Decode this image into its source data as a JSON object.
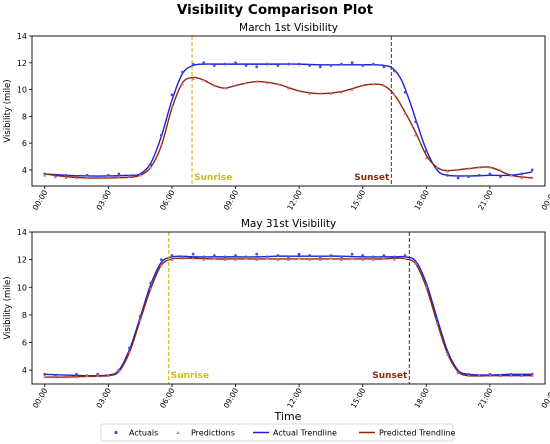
{
  "figure": {
    "title": "Visibility Comparison Plot",
    "xlabel": "Time"
  },
  "legend": {
    "placement": "bottom-center",
    "entries": [
      {
        "label": "Actuals",
        "kind": "points",
        "color": "#3b55d9"
      },
      {
        "label": "Predictions",
        "kind": "points",
        "color": "#e46a8c"
      },
      {
        "label": "Actual Trendline",
        "kind": "line",
        "color": "#1f1fd6"
      },
      {
        "label": "Predicted Trendline",
        "kind": "line",
        "color": "#8b2a0a"
      }
    ]
  },
  "colors": {
    "actual": "#1f1fd6",
    "predicted": "#8b2a0a",
    "actual_points": "#3b55d9",
    "predicted_points": "#e46a8c",
    "sunrise": "#e0a800",
    "sunset": "#8b1010",
    "sunrise_text": "#cdbb1a",
    "sunset_text": "#8b2a0a"
  },
  "chart_data": [
    {
      "type": "line",
      "title": "March 1st Visibility",
      "xlabel": "",
      "ylabel": "Visibility (mile)",
      "x_unit": "hour of day",
      "xlim": [
        -0.6,
        23.6
      ],
      "ylim": [
        2.8,
        14
      ],
      "xticks": [
        0,
        3,
        6,
        9,
        12,
        15,
        18,
        21,
        24
      ],
      "xtick_labels": [
        "00:00",
        "03:00",
        "06:00",
        "09:00",
        "12:00",
        "15:00",
        "18:00",
        "21:00",
        "00:00"
      ],
      "yticks": [
        4,
        6,
        8,
        10,
        12,
        14
      ],
      "grid": false,
      "annotations": [
        {
          "label": "Sunrise",
          "x": 6.95,
          "kind": "sunrise"
        },
        {
          "label": "Sunset",
          "x": 16.35,
          "kind": "sunset"
        }
      ],
      "series": [
        {
          "name": "Actual Trendline",
          "kind": "line",
          "color_key": "actual",
          "x": [
            0,
            1,
            2,
            3,
            4,
            4.5,
            5,
            5.5,
            6,
            6.5,
            7,
            7.5,
            8,
            9,
            10,
            11,
            12,
            13,
            14,
            15,
            15.5,
            16,
            16.4,
            16.8,
            17.2,
            17.6,
            18,
            18.5,
            19,
            20,
            21,
            22,
            23
          ],
          "y": [
            3.7,
            3.6,
            3.55,
            3.55,
            3.6,
            3.7,
            4.5,
            6.5,
            9.2,
            11.2,
            11.8,
            11.9,
            11.9,
            11.9,
            11.9,
            11.9,
            11.9,
            11.85,
            11.85,
            11.85,
            11.85,
            11.8,
            11.6,
            10.8,
            9.2,
            7.3,
            5.5,
            4.0,
            3.6,
            3.55,
            3.6,
            3.6,
            3.85
          ]
        },
        {
          "name": "Predicted Trendline",
          "kind": "line",
          "color_key": "predicted",
          "x": [
            0,
            1,
            2,
            3,
            4,
            4.5,
            5,
            5.5,
            6,
            6.5,
            7,
            7.5,
            8,
            8.5,
            9,
            10,
            11,
            12,
            13,
            14,
            15,
            15.5,
            16,
            16.5,
            17,
            17.5,
            18,
            18.5,
            19,
            20,
            21,
            22,
            23
          ],
          "y": [
            3.7,
            3.5,
            3.4,
            3.4,
            3.45,
            3.6,
            4.2,
            5.8,
            8.6,
            10.5,
            10.9,
            10.7,
            10.3,
            10.1,
            10.3,
            10.6,
            10.4,
            9.9,
            9.7,
            9.85,
            10.3,
            10.4,
            10.3,
            9.6,
            8.3,
            6.8,
            5.1,
            4.2,
            3.95,
            4.1,
            4.2,
            3.6,
            3.4
          ]
        },
        {
          "name": "Actuals",
          "kind": "points",
          "color_key": "actual_points",
          "x": [
            0,
            0.5,
            1,
            1.5,
            2,
            2.5,
            3,
            3.5,
            4,
            4.5,
            5,
            5.5,
            6,
            6.5,
            7,
            7.5,
            8,
            8.5,
            9,
            9.5,
            10,
            10.5,
            11,
            11.5,
            12,
            12.5,
            13,
            13.5,
            14,
            14.5,
            15,
            15.5,
            16,
            16.5,
            17,
            17.5,
            18,
            18.5,
            19,
            19.5,
            20,
            20.5,
            21,
            21.5,
            22,
            22.5,
            23
          ],
          "y": [
            3.7,
            3.5,
            3.6,
            3.5,
            3.6,
            3.5,
            3.6,
            3.7,
            3.5,
            3.6,
            4.4,
            6.6,
            9.6,
            11.3,
            11.9,
            12.0,
            11.8,
            11.9,
            12.0,
            11.8,
            11.7,
            11.9,
            11.8,
            11.9,
            11.9,
            11.8,
            11.7,
            11.8,
            11.9,
            12.0,
            11.8,
            11.9,
            11.7,
            11.4,
            9.8,
            7.6,
            5.4,
            4.1,
            3.6,
            3.4,
            3.5,
            3.6,
            3.7,
            3.5,
            3.6,
            3.7,
            4.0
          ]
        },
        {
          "name": "Predictions",
          "kind": "points",
          "color_key": "predicted_points",
          "x": [
            0,
            0.5,
            1,
            1.5,
            2,
            2.5,
            3,
            3.5,
            4,
            4.5,
            5,
            5.5,
            6,
            6.5,
            7,
            7.5,
            8,
            8.5,
            9,
            9.5,
            10,
            10.5,
            11,
            11.5,
            12,
            12.5,
            13,
            13.5,
            14,
            14.5,
            15,
            15.5,
            16,
            16.5,
            17,
            17.5,
            18,
            18.5,
            19,
            19.5,
            20,
            20.5,
            21,
            21.5,
            22,
            22.5,
            23
          ],
          "y": [
            3.6,
            3.5,
            3.4,
            3.4,
            3.4,
            3.4,
            3.4,
            3.5,
            3.5,
            3.6,
            4.2,
            5.9,
            8.7,
            10.4,
            10.8,
            10.7,
            10.3,
            10.1,
            10.3,
            10.5,
            10.6,
            10.5,
            10.4,
            10.1,
            9.9,
            9.7,
            9.7,
            9.7,
            9.8,
            10.0,
            10.3,
            10.4,
            10.3,
            9.6,
            8.2,
            6.6,
            4.9,
            4.2,
            3.9,
            4.0,
            4.1,
            4.2,
            4.2,
            4.0,
            3.6,
            3.4,
            3.4
          ]
        }
      ]
    },
    {
      "type": "line",
      "title": "May 31st Visibility",
      "xlabel": "Time",
      "ylabel": "Visibility (mile)",
      "x_unit": "hour of day",
      "xlim": [
        -0.6,
        23.6
      ],
      "ylim": [
        3.0,
        14
      ],
      "xticks": [
        0,
        3,
        6,
        9,
        12,
        15,
        18,
        21,
        24
      ],
      "xtick_labels": [
        "00:00",
        "03:00",
        "06:00",
        "09:00",
        "12:00",
        "15:00",
        "18:00",
        "21:00",
        "00:00"
      ],
      "yticks": [
        4,
        6,
        8,
        10,
        12,
        14
      ],
      "grid": false,
      "annotations": [
        {
          "label": "Sunrise",
          "x": 5.85,
          "kind": "sunrise"
        },
        {
          "label": "Sunset",
          "x": 17.2,
          "kind": "sunset"
        }
      ],
      "series": [
        {
          "name": "Actual Trendline",
          "kind": "line",
          "color_key": "actual",
          "x": [
            0,
            1,
            2,
            3,
            3.5,
            4,
            4.5,
            5,
            5.5,
            6,
            6.5,
            7,
            8,
            9,
            10,
            11,
            12,
            13,
            14,
            15,
            16,
            16.5,
            17,
            17.5,
            18,
            18.5,
            19,
            19.5,
            20,
            21,
            22,
            23
          ],
          "y": [
            3.7,
            3.65,
            3.6,
            3.65,
            4.0,
            5.5,
            7.8,
            10.2,
            11.8,
            12.2,
            12.25,
            12.2,
            12.2,
            12.2,
            12.2,
            12.25,
            12.25,
            12.25,
            12.25,
            12.2,
            12.2,
            12.2,
            12.2,
            11.9,
            10.3,
            7.8,
            5.4,
            4.0,
            3.7,
            3.65,
            3.7,
            3.7
          ]
        },
        {
          "name": "Predicted Trendline",
          "kind": "line",
          "color_key": "predicted",
          "x": [
            0,
            1,
            2,
            3,
            3.5,
            4,
            4.5,
            5,
            5.5,
            6,
            6.5,
            7,
            8,
            9,
            10,
            11,
            12,
            13,
            14,
            15,
            16,
            16.5,
            17,
            17.5,
            18,
            18.5,
            19,
            19.5,
            20,
            21,
            22,
            23
          ],
          "y": [
            3.5,
            3.5,
            3.55,
            3.6,
            3.9,
            5.3,
            7.6,
            9.9,
            11.6,
            12.05,
            12.1,
            12.1,
            12.05,
            12.05,
            12.05,
            12.05,
            12.05,
            12.05,
            12.05,
            12.05,
            12.05,
            12.1,
            12.05,
            11.7,
            10.0,
            7.5,
            5.2,
            3.9,
            3.6,
            3.6,
            3.6,
            3.6
          ]
        },
        {
          "name": "Actuals",
          "kind": "points",
          "color_key": "actual_points",
          "x": [
            0,
            0.5,
            1,
            1.5,
            2,
            2.5,
            3,
            3.5,
            4,
            4.5,
            5,
            5.5,
            6,
            6.5,
            7,
            7.5,
            8,
            8.5,
            9,
            9.5,
            10,
            10.5,
            11,
            11.5,
            12,
            12.5,
            13,
            13.5,
            14,
            14.5,
            15,
            15.5,
            16,
            16.5,
            17,
            17.5,
            18,
            18.5,
            19,
            19.5,
            20,
            20.5,
            21,
            21.5,
            22,
            22.5,
            23
          ],
          "y": [
            3.7,
            3.6,
            3.6,
            3.7,
            3.6,
            3.7,
            3.6,
            4.0,
            5.6,
            7.9,
            10.3,
            12.0,
            12.3,
            12.2,
            12.4,
            12.2,
            12.3,
            12.2,
            12.3,
            12.2,
            12.4,
            12.2,
            12.3,
            12.2,
            12.4,
            12.3,
            12.2,
            12.3,
            12.2,
            12.4,
            12.3,
            12.2,
            12.3,
            12.2,
            12.3,
            11.8,
            10.2,
            7.7,
            5.3,
            3.9,
            3.7,
            3.6,
            3.7,
            3.6,
            3.7,
            3.6,
            3.7
          ]
        },
        {
          "name": "Predictions",
          "kind": "points",
          "color_key": "predicted_points",
          "x": [
            0,
            0.5,
            1,
            1.5,
            2,
            2.5,
            3,
            3.5,
            4,
            4.5,
            5,
            5.5,
            6,
            6.5,
            7,
            7.5,
            8,
            8.5,
            9,
            9.5,
            10,
            10.5,
            11,
            11.5,
            12,
            12.5,
            13,
            13.5,
            14,
            14.5,
            15,
            15.5,
            16,
            16.5,
            17,
            17.5,
            18,
            18.5,
            19,
            19.5,
            20,
            20.5,
            21,
            21.5,
            22,
            22.5,
            23
          ],
          "y": [
            3.5,
            3.5,
            3.5,
            3.5,
            3.6,
            3.6,
            3.6,
            3.9,
            5.3,
            7.6,
            9.9,
            11.6,
            12.0,
            12.1,
            12.1,
            12.0,
            12.1,
            12.0,
            12.0,
            12.1,
            12.0,
            12.1,
            12.0,
            12.0,
            12.1,
            12.0,
            12.0,
            12.1,
            12.0,
            12.1,
            12.0,
            12.0,
            12.1,
            12.0,
            12.1,
            11.7,
            10.0,
            7.4,
            5.1,
            3.8,
            3.6,
            3.6,
            3.6,
            3.6,
            3.6,
            3.6,
            3.6
          ]
        }
      ]
    }
  ]
}
